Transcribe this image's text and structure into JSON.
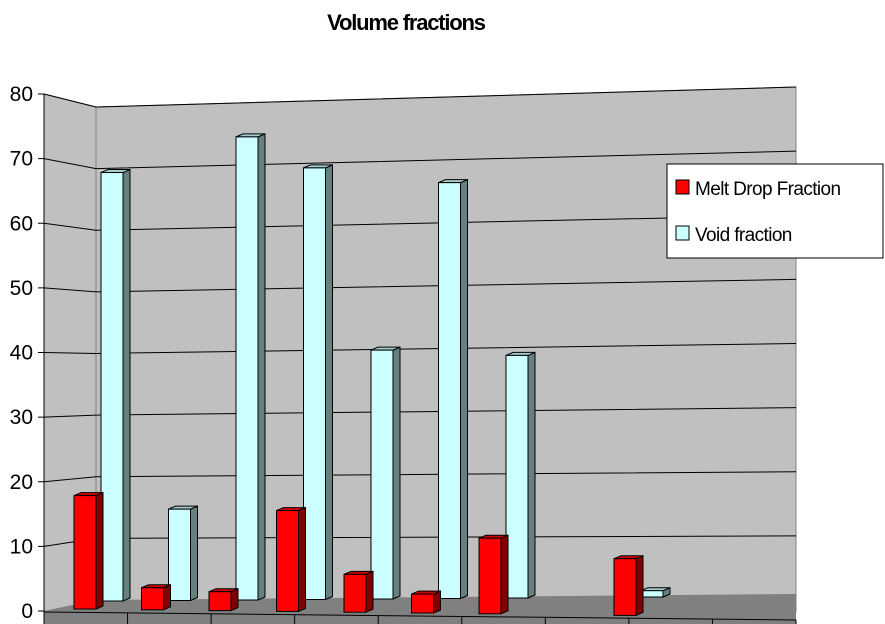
{
  "chart_data": {
    "type": "bar",
    "title": "Volume fractions",
    "ylim": [
      0,
      80
    ],
    "yticks": [
      "0",
      "10",
      "20",
      "30",
      "40",
      "50",
      "60",
      "70",
      "80"
    ],
    "categories": [
      "",
      "",
      "",
      "",
      "",
      "",
      "",
      "",
      ""
    ],
    "series": [
      {
        "name": "Melt Drop Fraction",
        "color": "#ff0000",
        "values": [
          18,
          3.5,
          3,
          16,
          6,
          3,
          12,
          null,
          9
        ]
      },
      {
        "name": "Void fraction",
        "color": "#ccffff",
        "values": [
          68,
          14.5,
          73.5,
          68.5,
          39.5,
          66,
          38.5,
          null,
          1
        ]
      }
    ],
    "grid": true,
    "legend": "right"
  }
}
